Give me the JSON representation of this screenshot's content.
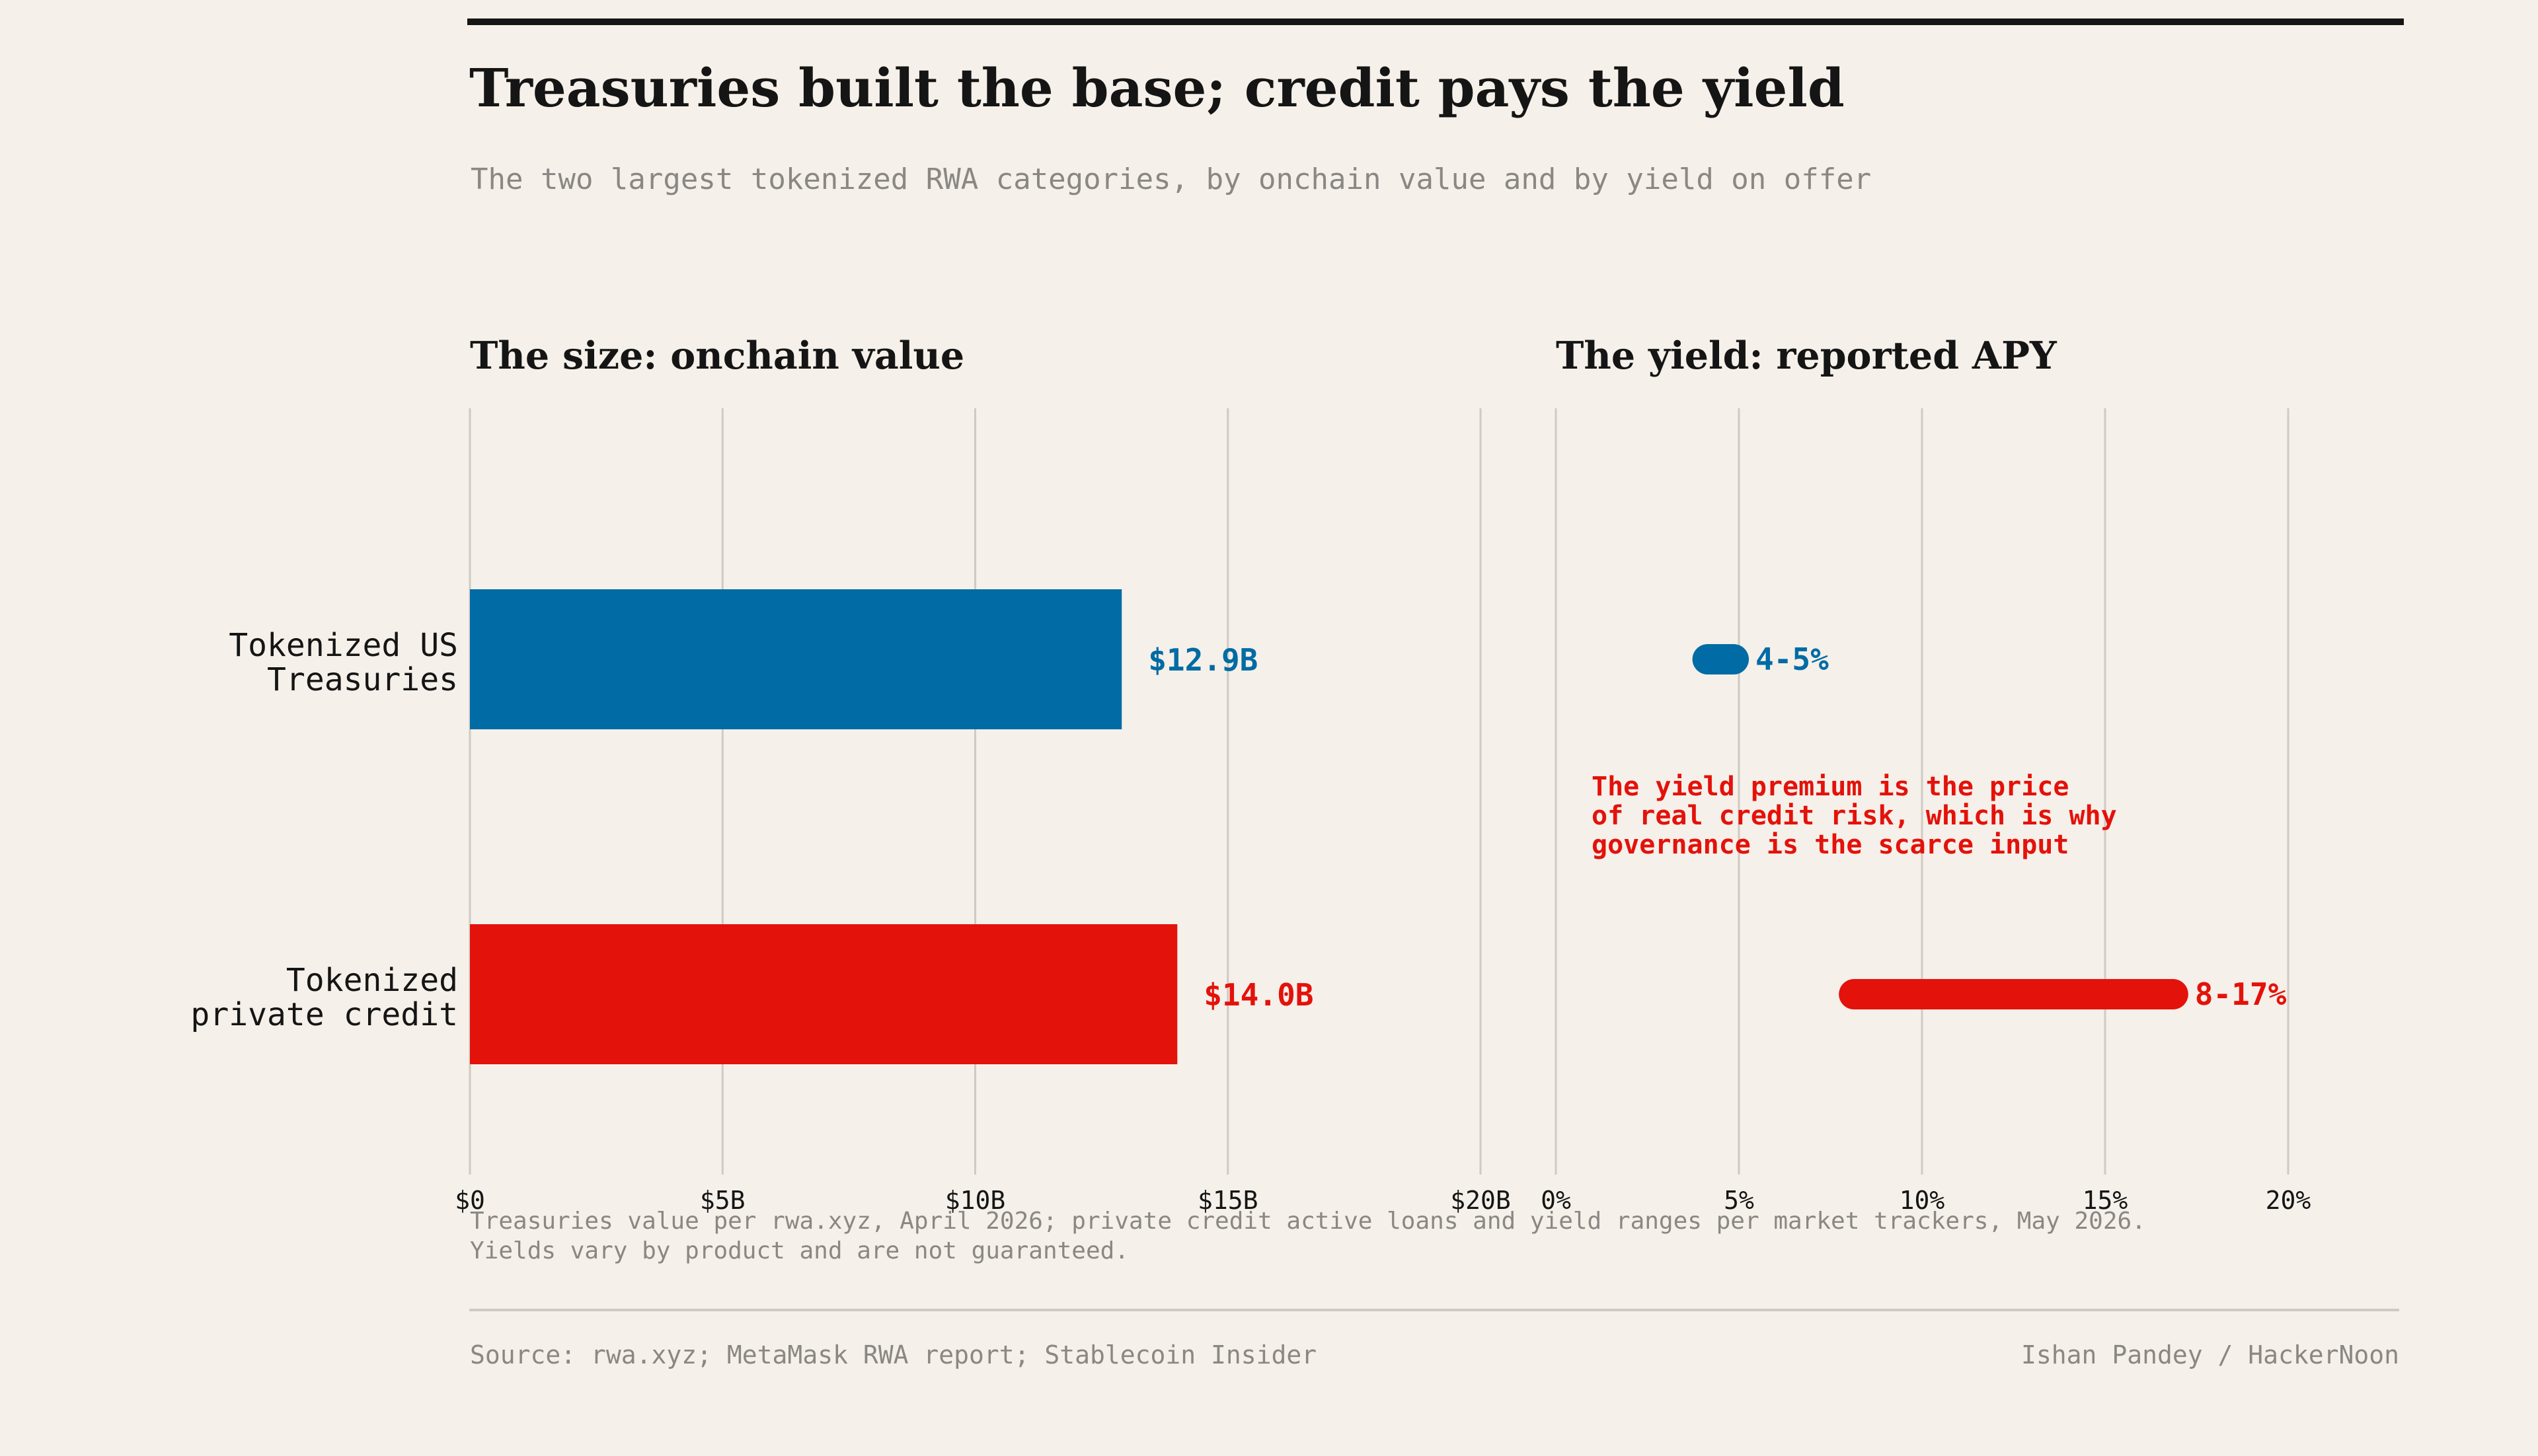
{
  "title": "Treasuries built the base; credit pays the yield",
  "subtitle": "The two largest tokenized RWA categories, by onchain value and by yield on offer",
  "footnote": [
    "Treasuries value per rwa.xyz, April 2026; private credit active loans and yield ranges per market trackers, May 2026.",
    "Yields vary by product and are not guaranteed."
  ],
  "source": "Source: rwa.xyz; MetaMask RWA report; Stablecoin Insider",
  "credit": "Ishan Pandey / HackerNoon",
  "colors": {
    "background": "#f5f0e9",
    "treasuries": "#006ba4",
    "private_credit": "#e3120b",
    "gridline": "#cfcbc4",
    "text": "#151515",
    "muted": "#8a8784"
  },
  "chart_data": [
    {
      "type": "bar",
      "orientation": "horizontal",
      "title": "The size: onchain value",
      "categories": [
        "Tokenized US Treasuries",
        "Tokenized private credit"
      ],
      "category_labels": [
        [
          "Tokenized US",
          "Treasuries"
        ],
        [
          "Tokenized",
          "private credit"
        ]
      ],
      "values": [
        12.9,
        14.0
      ],
      "value_labels": [
        "$12.9B",
        "$14.0B"
      ],
      "unit": "$B",
      "xlim": [
        0,
        20
      ],
      "ticks": [
        0,
        5,
        10,
        15,
        20
      ],
      "tick_labels": [
        "$0",
        "$5B",
        "$10B",
        "$15B",
        "$20B"
      ],
      "grid": true,
      "colors": [
        "#006ba4",
        "#e3120b"
      ]
    },
    {
      "type": "range",
      "orientation": "horizontal",
      "title": "The yield: reported APY",
      "categories": [
        "Tokenized US Treasuries",
        "Tokenized private credit"
      ],
      "ranges": [
        [
          4,
          5
        ],
        [
          8,
          17
        ]
      ],
      "value_labels": [
        "4-5%",
        "8-17%"
      ],
      "unit": "%",
      "xlim": [
        0,
        20
      ],
      "ticks": [
        0,
        5,
        10,
        15,
        20
      ],
      "tick_labels": [
        "0%",
        "5%",
        "10%",
        "15%",
        "20%"
      ],
      "grid": true,
      "colors": [
        "#006ba4",
        "#e3120b"
      ],
      "annotation": [
        "The yield premium is the price",
        "of real credit risk, which is why",
        "governance is the scarce input"
      ]
    }
  ]
}
